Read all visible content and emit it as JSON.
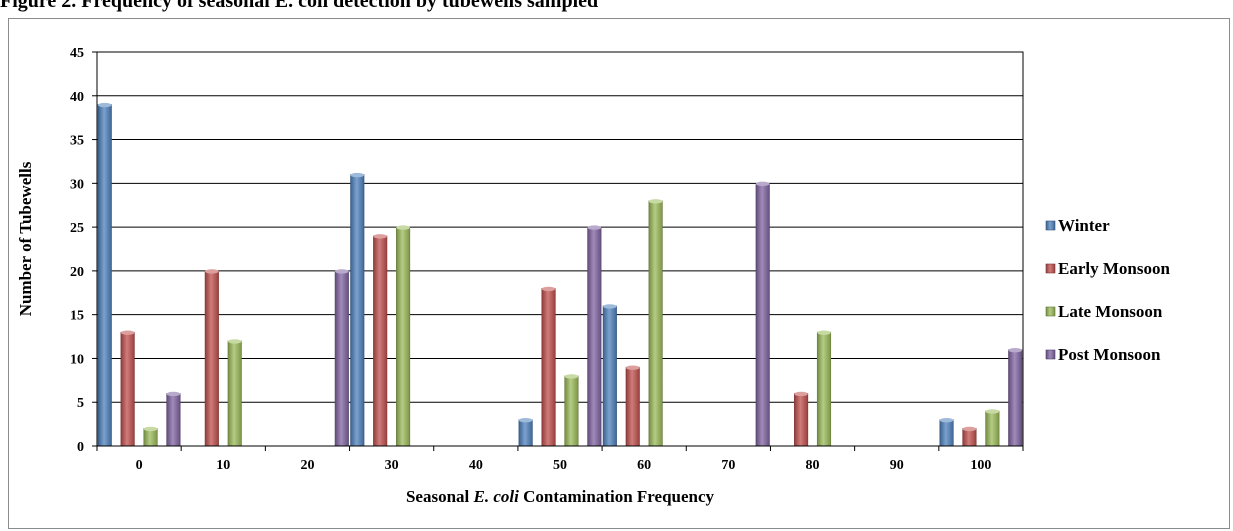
{
  "caption": "Figure 2. Frequency of seasonal E. coli detection by tubewells sampled",
  "chart_data": {
    "type": "bar",
    "title": "",
    "xlabel_parts": [
      "Seasonal ",
      "E. coli",
      " Contamination Frequency"
    ],
    "ylabel": "Number of Tubewells",
    "categories": [
      "0",
      "10",
      "20",
      "30",
      "40",
      "50",
      "60",
      "70",
      "80",
      "90",
      "100"
    ],
    "ylim": [
      0,
      45
    ],
    "yticks": [
      0,
      5,
      10,
      15,
      20,
      25,
      30,
      35,
      40,
      45
    ],
    "grid": true,
    "legend_position": "right",
    "series": [
      {
        "name": "Winter",
        "color": "#4f81bd",
        "values": [
          39,
          0,
          0,
          31,
          0,
          3,
          16,
          0,
          0,
          0,
          3
        ]
      },
      {
        "name": "Early Monsoon",
        "color": "#c0504d",
        "values": [
          13,
          20,
          0,
          24,
          0,
          18,
          9,
          0,
          6,
          0,
          2
        ]
      },
      {
        "name": "Late Monsoon",
        "color": "#9bbb59",
        "values": [
          2,
          12,
          0,
          25,
          0,
          8,
          28,
          0,
          13,
          0,
          4
        ]
      },
      {
        "name": "Post Monsoon",
        "color": "#8064a2",
        "values": [
          6,
          0,
          20,
          0,
          0,
          25,
          0,
          30,
          0,
          0,
          11
        ]
      }
    ]
  }
}
